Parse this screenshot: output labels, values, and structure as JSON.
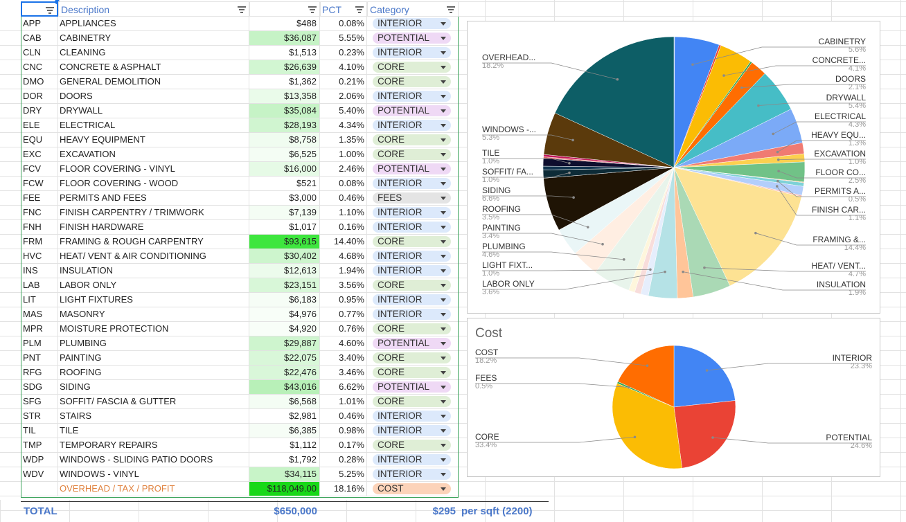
{
  "header": {
    "description": "Description",
    "pct": "PCT",
    "category": "Category"
  },
  "categories": {
    "INTERIOR": {
      "bg": "#dce9fb"
    },
    "POTENTIAL": {
      "bg": "#efd9f5"
    },
    "CORE": {
      "bg": "#dfeed6"
    },
    "FEES": {
      "bg": "#e4e4e4"
    },
    "COST": {
      "bg": "#fcd3b9"
    }
  },
  "rows": [
    {
      "code": "APP",
      "desc": "APPLIANCES",
      "cost": "$488",
      "pct": "0.08%",
      "cat": "INTERIOR",
      "bg": ""
    },
    {
      "code": "CAB",
      "desc": "CABINETRY",
      "cost": "$36,087",
      "pct": "5.55%",
      "cat": "POTENTIAL",
      "bg": "#c6f3c6"
    },
    {
      "code": "CLN",
      "desc": "CLEANING",
      "cost": "$1,513",
      "pct": "0.23%",
      "cat": "INTERIOR",
      "bg": ""
    },
    {
      "code": "CNC",
      "desc": "CONCRETE & ASPHALT",
      "cost": "$26,639",
      "pct": "4.10%",
      "cat": "CORE",
      "bg": "#d2f6d2"
    },
    {
      "code": "DMO",
      "desc": "GENERAL DEMOLITION",
      "cost": "$1,362",
      "pct": "0.21%",
      "cat": "CORE",
      "bg": ""
    },
    {
      "code": "DOR",
      "desc": "DOORS",
      "cost": "$13,358",
      "pct": "2.06%",
      "cat": "INTERIOR",
      "bg": "#eafbea"
    },
    {
      "code": "DRY",
      "desc": "DRYWALL",
      "cost": "$35,084",
      "pct": "5.40%",
      "cat": "POTENTIAL",
      "bg": "#c6f3c6"
    },
    {
      "code": "ELE",
      "desc": "ELECTRICAL",
      "cost": "$28,193",
      "pct": "4.34%",
      "cat": "INTERIOR",
      "bg": "#d0f5d0"
    },
    {
      "code": "EQU",
      "desc": "HEAVY EQUIPMENT",
      "cost": "$8,758",
      "pct": "1.35%",
      "cat": "CORE",
      "bg": "#f0fcf0"
    },
    {
      "code": "EXC",
      "desc": "EXCAVATION",
      "cost": "$6,525",
      "pct": "1.00%",
      "cat": "CORE",
      "bg": "#f4fdf4"
    },
    {
      "code": "FCV",
      "desc": "FLOOR COVERING - VINYL",
      "cost": "$16,000",
      "pct": "2.46%",
      "cat": "POTENTIAL",
      "bg": "#e6fae6"
    },
    {
      "code": "FCW",
      "desc": "FLOOR COVERING - WOOD",
      "cost": "$521",
      "pct": "0.08%",
      "cat": "INTERIOR",
      "bg": ""
    },
    {
      "code": "FEE",
      "desc": "PERMITS AND FEES",
      "cost": "$3,000",
      "pct": "0.46%",
      "cat": "FEES",
      "bg": ""
    },
    {
      "code": "FNC",
      "desc": "FINISH CARPENTRY / TRIMWORK",
      "cost": "$7,139",
      "pct": "1.10%",
      "cat": "INTERIOR",
      "bg": "#f4fdf4"
    },
    {
      "code": "FNH",
      "desc": "FINISH HARDWARE",
      "cost": "$1,017",
      "pct": "0.16%",
      "cat": "INTERIOR",
      "bg": ""
    },
    {
      "code": "FRM",
      "desc": "FRAMING & ROUGH CARPENTRY",
      "cost": "$93,615",
      "pct": "14.40%",
      "cat": "CORE",
      "bg": "#3ee63e"
    },
    {
      "code": "HVC",
      "desc": "HEAT/ VENT & AIR CONDITIONING",
      "cost": "$30,402",
      "pct": "4.68%",
      "cat": "INTERIOR",
      "bg": "#cdf5cd"
    },
    {
      "code": "INS",
      "desc": "INSULATION",
      "cost": "$12,613",
      "pct": "1.94%",
      "cat": "INTERIOR",
      "bg": "#ecfbec"
    },
    {
      "code": "LAB",
      "desc": "LABOR ONLY",
      "cost": "$23,151",
      "pct": "3.56%",
      "cat": "CORE",
      "bg": "#d8f7d8"
    },
    {
      "code": "LIT",
      "desc": "LIGHT FIXTURES",
      "cost": "$6,183",
      "pct": "0.95%",
      "cat": "INTERIOR",
      "bg": "#f6fdf6"
    },
    {
      "code": "MAS",
      "desc": "MASONRY",
      "cost": "$4,976",
      "pct": "0.77%",
      "cat": "INTERIOR",
      "bg": "#f8fef8"
    },
    {
      "code": "MPR",
      "desc": "MOISTURE PROTECTION",
      "cost": "$4,920",
      "pct": "0.76%",
      "cat": "CORE",
      "bg": "#f8fef8"
    },
    {
      "code": "PLM",
      "desc": "PLUMBING",
      "cost": "$29,887",
      "pct": "4.60%",
      "cat": "POTENTIAL",
      "bg": "#cef5ce"
    },
    {
      "code": "PNT",
      "desc": "PAINTING",
      "cost": "$22,075",
      "pct": "3.40%",
      "cat": "CORE",
      "bg": "#d9f7d9"
    },
    {
      "code": "RFG",
      "desc": "ROOFING",
      "cost": "$22,476",
      "pct": "3.46%",
      "cat": "CORE",
      "bg": "#d9f7d9"
    },
    {
      "code": "SDG",
      "desc": "SIDING",
      "cost": "$43,016",
      "pct": "6.62%",
      "cat": "POTENTIAL",
      "bg": "#b8f0b8"
    },
    {
      "code": "SFG",
      "desc": "SOFFIT/ FASCIA & GUTTER",
      "cost": "$6,568",
      "pct": "1.01%",
      "cat": "CORE",
      "bg": "#f4fdf4"
    },
    {
      "code": "STR",
      "desc": "STAIRS",
      "cost": "$2,981",
      "pct": "0.46%",
      "cat": "INTERIOR",
      "bg": ""
    },
    {
      "code": "TIL",
      "desc": "TILE",
      "cost": "$6,385",
      "pct": "0.98%",
      "cat": "INTERIOR",
      "bg": "#f6fdf6"
    },
    {
      "code": "TMP",
      "desc": "TEMPORARY REPAIRS",
      "cost": "$1,112",
      "pct": "0.17%",
      "cat": "CORE",
      "bg": ""
    },
    {
      "code": "WDP",
      "desc": "WINDOWS - SLIDING PATIO DOORS",
      "cost": "$1,792",
      "pct": "0.28%",
      "cat": "INTERIOR",
      "bg": ""
    },
    {
      "code": "WDV",
      "desc": "WINDOWS - VINYL",
      "cost": "$34,115",
      "pct": "5.25%",
      "cat": "INTERIOR",
      "bg": "#c8f4c8"
    },
    {
      "code": "",
      "desc": "OVERHEAD / TAX / PROFIT",
      "cost": "$118,049.00",
      "pct": "18.16%",
      "cat": "COST",
      "bg": "#18d818",
      "desc_color": "#e0823e"
    }
  ],
  "total": {
    "label": "TOTAL",
    "amount": "$650,000",
    "per_sqft": "$295",
    "per_sqft_label": "per sqft (2200)"
  },
  "chart_data": [
    {
      "type": "pie",
      "title": "",
      "slices": [
        {
          "label": "APPLIANCES",
          "value": 0.08,
          "color": "#1a5fb4"
        },
        {
          "label": "CABINETRY",
          "value": 5.55,
          "color": "#4285f4",
          "legend": "CABINETRY",
          "pct": "5.6%"
        },
        {
          "label": "CLEANING",
          "value": 0.23,
          "color": "#ea4335"
        },
        {
          "label": "CONCRETE & ASPHALT",
          "value": 4.1,
          "color": "#fbbc04",
          "legend": "CONCRETE...",
          "pct": "4.1%"
        },
        {
          "label": "GENERAL DEMOLITION",
          "value": 0.21,
          "color": "#34a853"
        },
        {
          "label": "DOORS",
          "value": 2.06,
          "color": "#ff6d01",
          "legend": "DOORS",
          "pct": "2.1%"
        },
        {
          "label": "DRYWALL",
          "value": 5.4,
          "color": "#46bdc6",
          "legend": "DRYWALL",
          "pct": "5.4%"
        },
        {
          "label": "ELECTRICAL",
          "value": 4.34,
          "color": "#7baaf7",
          "legend": "ELECTRICAL",
          "pct": "4.3%"
        },
        {
          "label": "HEAVY EQUIPMENT",
          "value": 1.35,
          "color": "#f07b72",
          "legend": "HEAVY EQU...",
          "pct": "1.3%"
        },
        {
          "label": "EXCAVATION",
          "value": 1.0,
          "color": "#fcd04f",
          "legend": "EXCAVATION",
          "pct": "1.0%"
        },
        {
          "label": "FLOOR COVERING - VINYL",
          "value": 2.46,
          "color": "#71c287",
          "legend": "FLOOR CO...",
          "pct": "2.5%"
        },
        {
          "label": "FLOOR COVERING - WOOD",
          "value": 0.08,
          "color": "#ff994d"
        },
        {
          "label": "PERMITS AND FEES",
          "value": 0.46,
          "color": "#7ed1d7",
          "legend": "PERMITS A...",
          "pct": "0.5%"
        },
        {
          "label": "FINISH CARPENTRY / TRIMWORK",
          "value": 1.1,
          "color": "#b3cefb",
          "legend": "FINISH CAR...",
          "pct": "1.1%"
        },
        {
          "label": "FINISH HARDWARE",
          "value": 0.16,
          "color": "#f7b4ae"
        },
        {
          "label": "FRAMING & ROUGH CARPENTRY",
          "value": 14.4,
          "color": "#fde293",
          "legend": "FRAMING &...",
          "pct": "14.4%"
        },
        {
          "label": "HEAT/ VENT & AIR CONDITIONING",
          "value": 4.68,
          "color": "#aad9b5",
          "legend": "HEAT/ VENT...",
          "pct": "4.7%"
        },
        {
          "label": "INSULATION",
          "value": 1.94,
          "color": "#ffc599",
          "legend": "INSULATION",
          "pct": "1.9%"
        },
        {
          "label": "LABOR ONLY",
          "value": 3.56,
          "color": "#b5e2e6",
          "legend": "LABOR ONLY",
          "pct": "3.6%"
        },
        {
          "label": "LIGHT FIXTURES",
          "value": 0.95,
          "color": "#e6eefc",
          "legend": "LIGHT FIXT...",
          "pct": "1.0%"
        },
        {
          "label": "MASONRY",
          "value": 0.77,
          "color": "#f8dddb"
        },
        {
          "label": "MOISTURE PROTECTION",
          "value": 0.76,
          "color": "#fef6dc"
        },
        {
          "label": "PLUMBING",
          "value": 4.6,
          "color": "#e8f4eb",
          "legend": "PLUMBING",
          "pct": "4.6%"
        },
        {
          "label": "PAINTING",
          "value": 3.4,
          "color": "#ffeee2",
          "legend": "PAINTING",
          "pct": "3.4%"
        },
        {
          "label": "ROOFING",
          "value": 3.46,
          "color": "#eaf6f7",
          "legend": "ROOFING",
          "pct": "3.5%"
        },
        {
          "label": "SIDING",
          "value": 6.62,
          "color": "#1f1405",
          "legend": "SIDING",
          "pct": "6.6%"
        },
        {
          "label": "SOFFIT/ FASCIA & GUTTER",
          "value": 1.01,
          "color": "#0d2b37",
          "legend": "SOFFIT/ FA...",
          "pct": "1.0%"
        },
        {
          "label": "STAIRS",
          "value": 0.46,
          "color": "#123550"
        },
        {
          "label": "TILE",
          "value": 0.98,
          "color": "#0e0e2e",
          "legend": "TILE",
          "pct": "1.0%"
        },
        {
          "label": "TEMPORARY REPAIRS",
          "value": 0.17,
          "color": "#e06666"
        },
        {
          "label": "WINDOWS - SLIDING PATIO DOORS",
          "value": 0.28,
          "color": "#c2185b"
        },
        {
          "label": "WINDOWS - VINYL",
          "value": 5.25,
          "color": "#5b3a0c",
          "legend": "WINDOWS -...",
          "pct": "5.3%"
        },
        {
          "label": "OVERHEAD / TAX / PROFIT",
          "value": 18.16,
          "color": "#0d5e66",
          "legend": "OVERHEAD...",
          "pct": "18.2%"
        }
      ]
    },
    {
      "type": "pie",
      "title": "Cost",
      "slices": [
        {
          "label": "INTERIOR",
          "value": 23.3,
          "color": "#4285f4",
          "pct": "23.3%"
        },
        {
          "label": "POTENTIAL",
          "value": 24.6,
          "color": "#ea4335",
          "pct": "24.6%"
        },
        {
          "label": "CORE",
          "value": 33.4,
          "color": "#fbbc04",
          "pct": "33.4%"
        },
        {
          "label": "FEES",
          "value": 0.5,
          "color": "#34a853",
          "pct": "0.5%"
        },
        {
          "label": "COST",
          "value": 18.2,
          "color": "#ff6d01",
          "pct": "18.2%"
        }
      ]
    }
  ]
}
